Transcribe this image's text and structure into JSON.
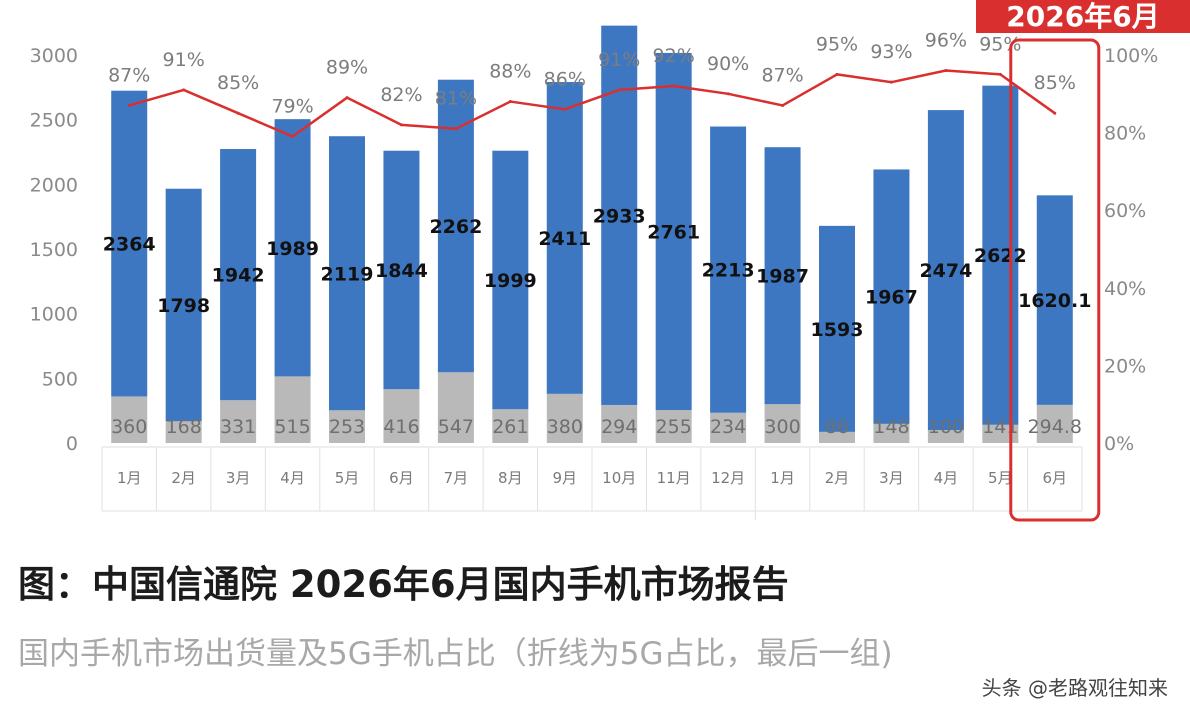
{
  "highlight_banner": "2026年6月",
  "caption": {
    "title": "图：中国信通院 2026年6月国内手机市场报告",
    "subtitle": "国内手机市场出货量及5G手机占比（折线为5G占比，最后一组)",
    "source": "头条 @老路观往知来"
  },
  "colors": {
    "fiveg_bar": "#3d77c2",
    "non5g_bar": "#b9b9b9",
    "share_line": "#d9302f",
    "highlight": "#d9302f"
  },
  "chart_data": {
    "type": "bar",
    "categories": [
      "1月",
      "2月",
      "3月",
      "4月",
      "5月",
      "6月",
      "7月",
      "8月",
      "9月",
      "10月",
      "11月",
      "12月",
      "1月",
      "2月",
      "3月",
      "4月",
      "5月",
      "6月"
    ],
    "series": [
      {
        "values": [
          2364,
          1798,
          1942,
          1989,
          2119,
          1844,
          2262,
          1999,
          2411,
          2933,
          2761,
          2213,
          1987,
          1593,
          1967,
          2474,
          2622,
          1620.1
        ]
      },
      {
        "values": [
          360,
          168,
          331,
          515,
          253,
          416,
          547,
          261,
          380,
          294,
          255,
          234,
          300,
          86,
          148,
          100,
          141,
          294.8
        ]
      }
    ],
    "value_labels_5g": [
      "2364",
      "1798",
      "1942",
      "1989",
      "2119",
      "1844",
      "2262",
      "1999",
      "2411",
      "2933",
      "2761",
      "2213",
      "1987",
      "1593",
      "1967",
      "2474",
      "2622",
      "1620.1"
    ],
    "value_labels_non5g": [
      "360",
      "168",
      "331",
      "515",
      "253",
      "416",
      "547",
      "261",
      "380",
      "294",
      "255",
      "234",
      "300",
      "86",
      "148",
      "100",
      "141",
      "294.8"
    ],
    "line": {
      "values": [
        87,
        91,
        85,
        79,
        89,
        82,
        81,
        88,
        86,
        91,
        92,
        90,
        87,
        95,
        93,
        96,
        95,
        85
      ],
      "labels": [
        "87%",
        "91%",
        "85%",
        "79%",
        "89%",
        "82%",
        "81%",
        "88%",
        "86%",
        "91%",
        "92%",
        "90%",
        "87%",
        "95%",
        "93%",
        "96%",
        "95%",
        "85%"
      ],
      "axis": "right"
    },
    "y_left": {
      "ticks": [
        "0",
        "500",
        "1000",
        "1500",
        "2000",
        "2500",
        "3000"
      ],
      "range": [
        0,
        3000
      ]
    },
    "y_right": {
      "ticks": [
        "0%",
        "20%",
        "40%",
        "60%",
        "80%",
        "100%"
      ],
      "range": [
        0,
        100
      ]
    },
    "highlighted_category_index": 17
  }
}
